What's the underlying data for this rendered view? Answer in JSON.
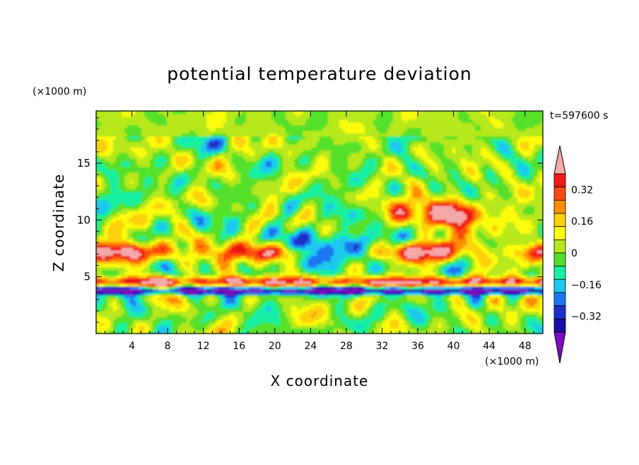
{
  "chart_data": {
    "type": "heatmap",
    "title": "potential temperature deviation",
    "xlabel": "X coordinate",
    "ylabel": "Z coordinate",
    "x_unit": "(×1000 m)",
    "z_unit": "(×1000 m)",
    "time_label": "t=597600 s",
    "xlim": [
      0,
      50
    ],
    "zlim": [
      0,
      19.6
    ],
    "x_ticks": [
      4,
      8,
      12,
      16,
      20,
      24,
      28,
      32,
      36,
      40,
      44,
      48
    ],
    "z_ticks": [
      5,
      10,
      15
    ],
    "colorbar": {
      "levels": [
        -0.48,
        -0.4,
        -0.32,
        -0.24,
        -0.16,
        -0.08,
        0,
        0.08,
        0.16,
        0.24,
        0.32,
        0.4,
        0.48
      ],
      "tick_labels": [
        "0.32",
        "0.16",
        "0",
        "−0.16",
        "−0.32"
      ],
      "tick_values": [
        0.32,
        0.16,
        0,
        -0.16,
        -0.32
      ],
      "colors": [
        "#7a0dbe",
        "#1a0ea8",
        "#1c2ec8",
        "#1c78f0",
        "#1cc8ee",
        "#18f0a0",
        "#54e02a",
        "#b6e81c",
        "#fcfc10",
        "#fcd008",
        "#fc8c00",
        "#fc4a10",
        "#f01818",
        "#f4a8a8"
      ],
      "extend": "both"
    }
  }
}
